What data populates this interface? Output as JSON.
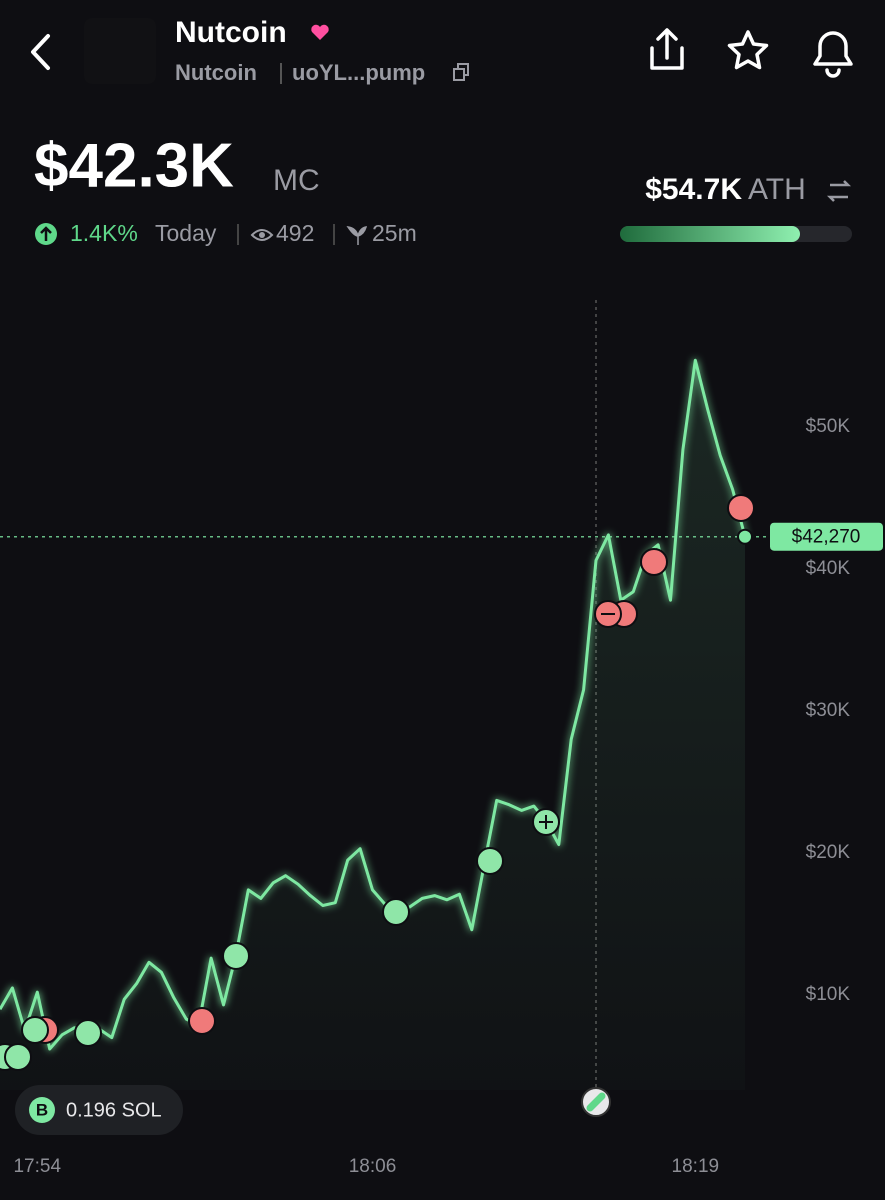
{
  "header": {
    "title": "Nutcoin",
    "name": "Nutcoin",
    "address": "uoYL...pump"
  },
  "stats": {
    "market_cap": "$42.3K",
    "market_cap_unit": "MC",
    "change": "1.4K%",
    "change_period": "Today",
    "views": "492",
    "age": "25m",
    "ath": "$54.7K",
    "ath_label": "ATH"
  },
  "position": {
    "badge": "B",
    "amount": "0.196 SOL"
  },
  "chart_data": {
    "type": "line",
    "categories": [
      null,
      null,
      null,
      "17:54",
      null,
      null,
      null,
      null,
      null,
      null,
      null,
      null,
      null,
      null,
      null,
      null,
      null,
      null,
      null,
      null,
      null,
      null,
      null,
      null,
      null,
      null,
      null,
      null,
      null,
      null,
      "18:06",
      null,
      null,
      null,
      null,
      null,
      null,
      null,
      null,
      null,
      null,
      null,
      null,
      null,
      null,
      null,
      null,
      null,
      null,
      null,
      null,
      null,
      null,
      null,
      null,
      null,
      "18:19",
      null,
      null,
      null,
      null
    ],
    "series": [
      {
        "color": "#7ee8a2",
        "values": [
          9000,
          10500,
          7500,
          10200,
          6200,
          7200,
          7700,
          7400,
          7600,
          7000,
          9700,
          10800,
          12300,
          11600,
          9800,
          8300,
          7900,
          12600,
          9300,
          12800,
          17400,
          16800,
          17900,
          18400,
          17800,
          17000,
          16300,
          16500,
          19500,
          20300,
          17400,
          16400,
          15800,
          16200,
          16800,
          17000,
          16700,
          17100,
          14600,
          19200,
          23700,
          23400,
          23000,
          23300,
          22200,
          20600,
          28000,
          31500,
          40600,
          42400,
          37800,
          38400,
          41000,
          41700,
          37800,
          48400,
          54700,
          51200,
          48000,
          45600,
          42270
        ]
      }
    ],
    "current": {
      "value": 42270,
      "label": "$42,270"
    },
    "ylim": [
      3310,
      58940
    ],
    "yticks": [
      {
        "value": 10000,
        "label": "$10K"
      },
      {
        "value": 20000,
        "label": "$20K"
      },
      {
        "value": 30000,
        "label": "$30K"
      },
      {
        "value": 40000,
        "label": "$40K"
      },
      {
        "value": 50000,
        "label": "$50K"
      }
    ]
  }
}
